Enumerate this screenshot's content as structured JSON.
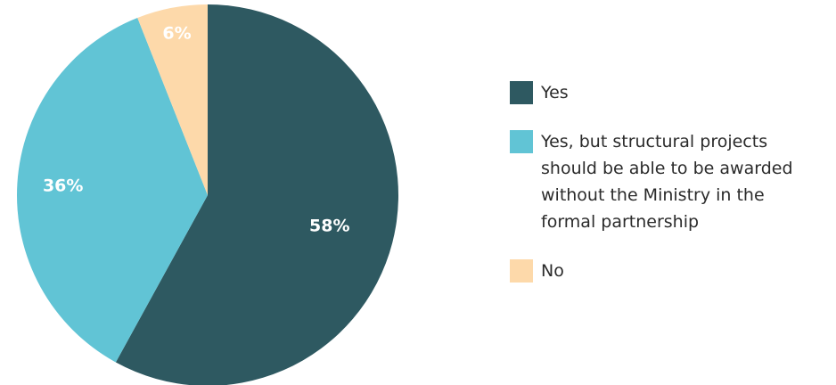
{
  "chart_data": {
    "type": "pie",
    "title": "",
    "series": [
      {
        "name": "Yes",
        "value": 58,
        "label": "58%",
        "color": "#2e5961"
      },
      {
        "name": "Yes, but structural projects\nshould be able to be awarded\nwithout the Ministry in the\nformal partnership",
        "value": 36,
        "label": "36%",
        "color": "#61c4d5"
      },
      {
        "name": "No",
        "value": 6,
        "label": "6%",
        "color": "#fdd9aa"
      }
    ],
    "legend_position": "right"
  }
}
